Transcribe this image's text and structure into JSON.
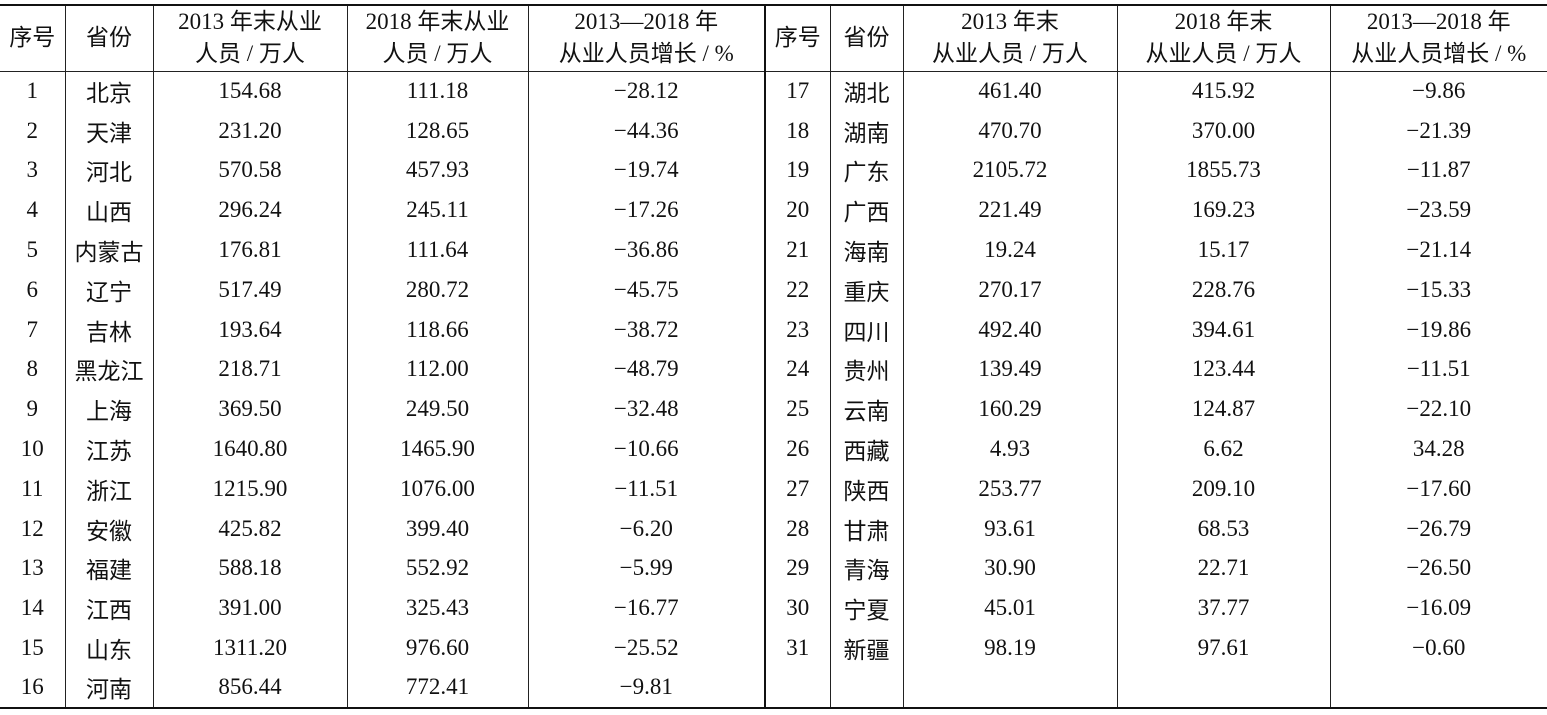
{
  "table": {
    "headers_left": [
      [
        "序号"
      ],
      [
        "省份"
      ],
      [
        "2013 年末从业",
        "人员 / 万人"
      ],
      [
        "2018 年末从业",
        "人员 / 万人"
      ],
      [
        "2013—2018 年",
        "从业人员增长 / %"
      ]
    ],
    "headers_right": [
      [
        "序号"
      ],
      [
        "省份"
      ],
      [
        "2013 年末",
        "从业人员 / 万人"
      ],
      [
        "2018 年末",
        "从业人员 / 万人"
      ],
      [
        "2013—2018 年",
        "从业人员增长 / %"
      ]
    ],
    "rows_left": [
      [
        "1",
        "北京",
        "154.68",
        "111.18",
        "−28.12"
      ],
      [
        "2",
        "天津",
        "231.20",
        "128.65",
        "−44.36"
      ],
      [
        "3",
        "河北",
        "570.58",
        "457.93",
        "−19.74"
      ],
      [
        "4",
        "山西",
        "296.24",
        "245.11",
        "−17.26"
      ],
      [
        "5",
        "内蒙古",
        "176.81",
        "111.64",
        "−36.86"
      ],
      [
        "6",
        "辽宁",
        "517.49",
        "280.72",
        "−45.75"
      ],
      [
        "7",
        "吉林",
        "193.64",
        "118.66",
        "−38.72"
      ],
      [
        "8",
        "黑龙江",
        "218.71",
        "112.00",
        "−48.79"
      ],
      [
        "9",
        "上海",
        "369.50",
        "249.50",
        "−32.48"
      ],
      [
        "10",
        "江苏",
        "1640.80",
        "1465.90",
        "−10.66"
      ],
      [
        "11",
        "浙江",
        "1215.90",
        "1076.00",
        "−11.51"
      ],
      [
        "12",
        "安徽",
        "425.82",
        "399.40",
        "−6.20"
      ],
      [
        "13",
        "福建",
        "588.18",
        "552.92",
        "−5.99"
      ],
      [
        "14",
        "江西",
        "391.00",
        "325.43",
        "−16.77"
      ],
      [
        "15",
        "山东",
        "1311.20",
        "976.60",
        "−25.52"
      ],
      [
        "16",
        "河南",
        "856.44",
        "772.41",
        "−9.81"
      ]
    ],
    "rows_right": [
      [
        "17",
        "湖北",
        "461.40",
        "415.92",
        "−9.86"
      ],
      [
        "18",
        "湖南",
        "470.70",
        "370.00",
        "−21.39"
      ],
      [
        "19",
        "广东",
        "2105.72",
        "1855.73",
        "−11.87"
      ],
      [
        "20",
        "广西",
        "221.49",
        "169.23",
        "−23.59"
      ],
      [
        "21",
        "海南",
        "19.24",
        "15.17",
        "−21.14"
      ],
      [
        "22",
        "重庆",
        "270.17",
        "228.76",
        "−15.33"
      ],
      [
        "23",
        "四川",
        "492.40",
        "394.61",
        "−19.86"
      ],
      [
        "24",
        "贵州",
        "139.49",
        "123.44",
        "−11.51"
      ],
      [
        "25",
        "云南",
        "160.29",
        "124.87",
        "−22.10"
      ],
      [
        "26",
        "西藏",
        "4.93",
        "6.62",
        "34.28"
      ],
      [
        "27",
        "陕西",
        "253.77",
        "209.10",
        "−17.60"
      ],
      [
        "28",
        "甘肃",
        "93.61",
        "68.53",
        "−26.79"
      ],
      [
        "29",
        "青海",
        "30.90",
        "22.71",
        "−26.50"
      ],
      [
        "30",
        "宁夏",
        "45.01",
        "37.77",
        "−16.09"
      ],
      [
        "31",
        "新疆",
        "98.19",
        "97.61",
        "−0.60"
      ]
    ]
  }
}
